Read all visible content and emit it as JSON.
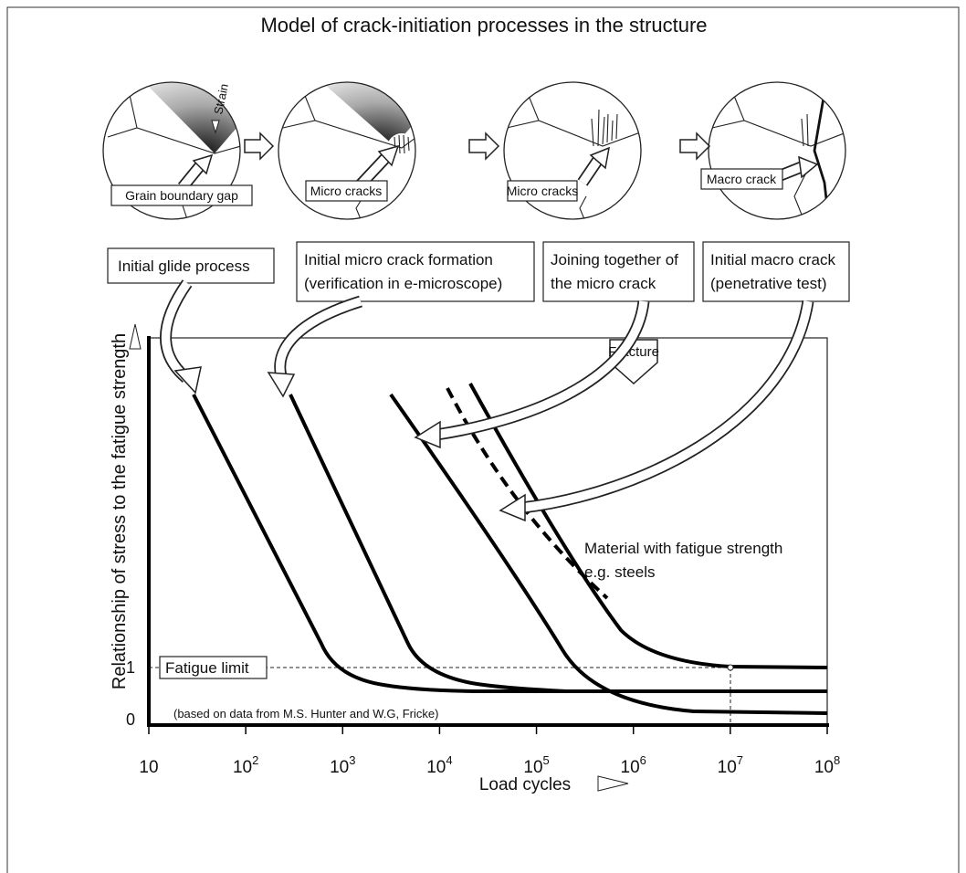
{
  "title": "Model of crack-initiation processes in the structure",
  "strain_label": "Strain",
  "stages": [
    {
      "circle_label": "Grain boundary gap",
      "process": [
        "Initial glide process"
      ]
    },
    {
      "circle_label": "Micro cracks",
      "process": [
        "Initial micro crack formation",
        "(verification in e-microscope)"
      ]
    },
    {
      "circle_label": "Micro cracks",
      "process": [
        "Joining together of",
        "the micro crack"
      ]
    },
    {
      "circle_label": "Macro crack",
      "process": [
        "Initial macro crack",
        "(penetrative test)"
      ]
    }
  ],
  "chart": {
    "y_axis_label": "Relationship of stress to the fatigue strength",
    "x_axis_label": "Load cycles",
    "xticks": [
      {
        "base": "10"
      },
      {
        "base": "10",
        "exp": "2"
      },
      {
        "base": "10",
        "exp": "3"
      },
      {
        "base": "10",
        "exp": "4"
      },
      {
        "base": "10",
        "exp": "5"
      },
      {
        "base": "10",
        "exp": "6"
      },
      {
        "base": "10",
        "exp": "7"
      },
      {
        "base": "10",
        "exp": "8"
      }
    ],
    "yticks": [
      "1",
      "0"
    ],
    "fatigue_limit_label": "Fatigue limit",
    "fracture_label": "Fracture",
    "material_note": [
      "Material with fatigue strength",
      "e.g. steels"
    ],
    "source_note": "(based on data from M.S. Hunter and W.G, Fricke)"
  }
}
